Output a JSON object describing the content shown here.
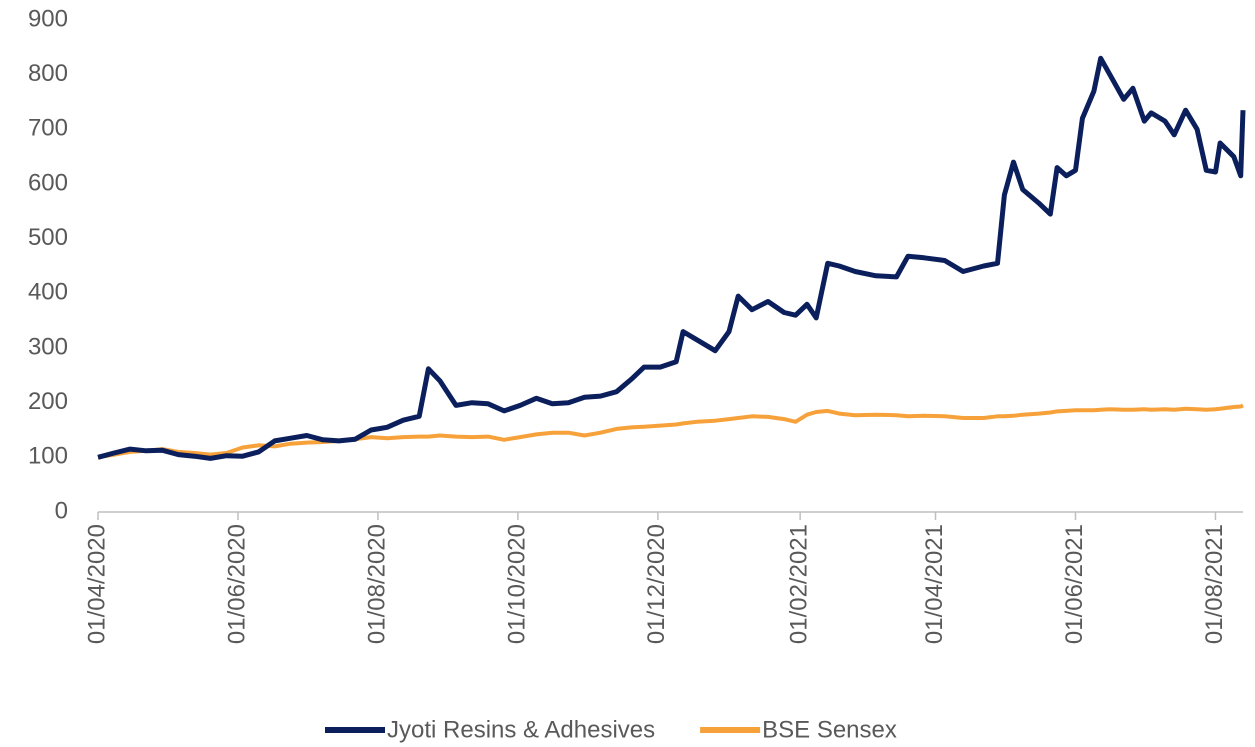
{
  "chart_data": {
    "type": "line",
    "x": [
      "2020-04-01",
      "2020-04-08",
      "2020-04-15",
      "2020-04-22",
      "2020-04-29",
      "2020-05-06",
      "2020-05-13",
      "2020-05-20",
      "2020-05-27",
      "2020-06-03",
      "2020-06-10",
      "2020-06-17",
      "2020-06-24",
      "2020-07-01",
      "2020-07-08",
      "2020-07-15",
      "2020-07-22",
      "2020-07-29",
      "2020-08-05",
      "2020-08-12",
      "2020-08-19",
      "2020-08-23",
      "2020-08-28",
      "2020-09-04",
      "2020-09-11",
      "2020-09-18",
      "2020-09-25",
      "2020-10-02",
      "2020-10-09",
      "2020-10-16",
      "2020-10-23",
      "2020-10-30",
      "2020-11-06",
      "2020-11-13",
      "2020-11-20",
      "2020-11-25",
      "2020-12-02",
      "2020-12-09",
      "2020-12-12",
      "2020-12-18",
      "2020-12-26",
      "2021-01-01",
      "2021-01-05",
      "2021-01-11",
      "2021-01-18",
      "2021-01-25",
      "2021-01-30",
      "2021-02-04",
      "2021-02-08",
      "2021-02-13",
      "2021-02-18",
      "2021-02-25",
      "2021-03-06",
      "2021-03-15",
      "2021-03-20",
      "2021-03-27",
      "2021-04-05",
      "2021-04-13",
      "2021-04-22",
      "2021-04-28",
      "2021-05-01",
      "2021-05-05",
      "2021-05-09",
      "2021-05-16",
      "2021-05-21",
      "2021-05-24",
      "2021-05-28",
      "2021-06-01",
      "2021-06-04",
      "2021-06-09",
      "2021-06-12",
      "2021-06-16",
      "2021-06-22",
      "2021-06-26",
      "2021-07-01",
      "2021-07-04",
      "2021-07-10",
      "2021-07-14",
      "2021-07-19",
      "2021-07-24",
      "2021-07-28",
      "2021-08-01",
      "2021-08-03",
      "2021-08-09",
      "2021-08-12",
      "2021-08-13"
    ],
    "series": [
      {
        "name": "Jyoti Resins & Adhesives",
        "color": "#0b1f5c",
        "values": [
          100,
          108,
          115,
          112,
          113,
          105,
          102,
          98,
          103,
          102,
          110,
          130,
          135,
          140,
          132,
          130,
          133,
          150,
          155,
          168,
          175,
          262,
          240,
          195,
          200,
          198,
          185,
          195,
          208,
          198,
          200,
          210,
          212,
          220,
          245,
          265,
          265,
          275,
          330,
          315,
          295,
          330,
          395,
          370,
          385,
          365,
          360,
          380,
          355,
          455,
          450,
          440,
          432,
          430,
          468,
          465,
          460,
          440,
          450,
          455,
          580,
          640,
          590,
          565,
          545,
          630,
          615,
          625,
          720,
          770,
          830,
          800,
          755,
          775,
          715,
          730,
          715,
          690,
          735,
          700,
          625,
          622,
          675,
          650,
          615,
          735
        ]
      },
      {
        "name": "BSE Sensex",
        "color": "#f7a13a",
        "values": [
          100,
          105,
          110,
          112,
          115,
          110,
          108,
          105,
          108,
          118,
          122,
          120,
          125,
          127,
          128,
          130,
          133,
          137,
          135,
          137,
          138,
          138,
          140,
          138,
          137,
          138,
          132,
          137,
          142,
          145,
          145,
          140,
          145,
          152,
          155,
          156,
          158,
          160,
          162,
          165,
          167,
          170,
          172,
          175,
          174,
          170,
          165,
          178,
          183,
          185,
          180,
          177,
          178,
          177,
          175,
          176,
          175,
          172,
          172,
          175,
          175,
          176,
          178,
          180,
          182,
          184,
          185,
          186,
          186,
          186,
          187,
          188,
          187,
          187,
          188,
          187,
          188,
          187,
          189,
          188,
          187,
          188,
          189,
          192,
          193,
          195
        ]
      }
    ],
    "xlim": [
      "2020-04-01",
      "2021-08-13"
    ],
    "xticks": [
      {
        "value": "2020-04-01",
        "label": "01/04/2020"
      },
      {
        "value": "2020-06-01",
        "label": "01/06/2020"
      },
      {
        "value": "2020-08-01",
        "label": "01/08/2020"
      },
      {
        "value": "2020-10-01",
        "label": "01/10/2020"
      },
      {
        "value": "2020-12-01",
        "label": "01/12/2020"
      },
      {
        "value": "2021-02-01",
        "label": "01/02/2021"
      },
      {
        "value": "2021-04-01",
        "label": "01/04/2021"
      },
      {
        "value": "2021-06-01",
        "label": "01/06/2021"
      },
      {
        "value": "2021-08-01",
        "label": "01/08/2021"
      }
    ],
    "ylim": [
      0,
      900
    ],
    "yticks": [
      0,
      100,
      200,
      300,
      400,
      500,
      600,
      700,
      800,
      900
    ],
    "grid": false,
    "legend": "bottom"
  }
}
